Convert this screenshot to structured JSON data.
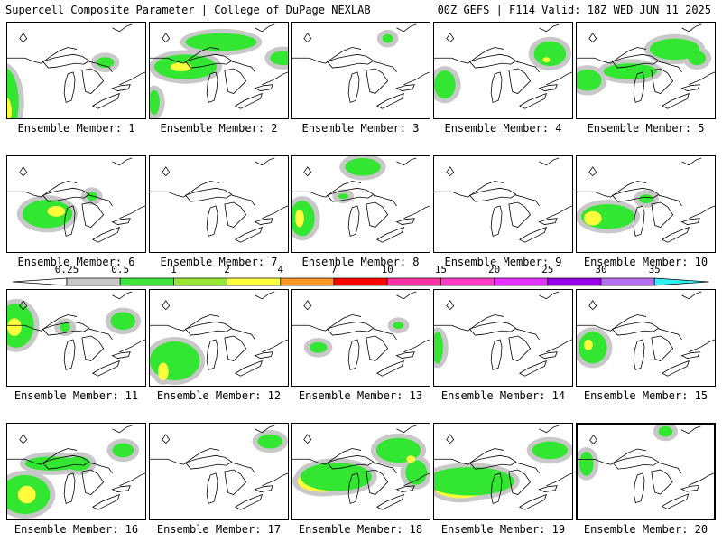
{
  "header": {
    "left": "Supercell Composite Parameter | College of DuPage NEXLAB",
    "right": "00Z GEFS | F114 Valid: 18Z WED JUN 11 2025"
  },
  "panels": [
    {
      "label": "Ensemble Member: 1",
      "blobs": [
        [
          "g",
          -5,
          90,
          18,
          40
        ],
        [
          "y",
          -2,
          100,
          7,
          16
        ],
        [
          "g",
          110,
          45,
          10,
          6
        ]
      ]
    },
    {
      "label": "Ensemble Member: 2",
      "blobs": [
        [
          "g",
          40,
          50,
          35,
          14
        ],
        [
          "y",
          35,
          50,
          12,
          5
        ],
        [
          "g",
          80,
          22,
          40,
          10
        ],
        [
          "g",
          150,
          40,
          15,
          8
        ],
        [
          "g",
          5,
          90,
          6,
          14
        ]
      ]
    },
    {
      "label": "Ensemble Member: 3",
      "blobs": [
        [
          "g",
          108,
          18,
          6,
          5
        ]
      ]
    },
    {
      "label": "Ensemble Member: 4",
      "blobs": [
        [
          "g",
          12,
          70,
          12,
          16
        ],
        [
          "g",
          130,
          35,
          18,
          14
        ],
        [
          "y",
          126,
          42,
          4,
          3
        ]
      ]
    },
    {
      "label": "Ensemble Member: 5",
      "blobs": [
        [
          "g",
          12,
          65,
          16,
          12
        ],
        [
          "g",
          60,
          55,
          30,
          9
        ],
        [
          "g",
          110,
          30,
          28,
          12
        ],
        [
          "g",
          135,
          40,
          10,
          8
        ]
      ]
    },
    {
      "label": "Ensemble Member: 6",
      "blobs": [
        [
          "g",
          45,
          65,
          28,
          16
        ],
        [
          "y",
          55,
          62,
          10,
          6
        ],
        [
          "g",
          95,
          45,
          6,
          5
        ]
      ]
    },
    {
      "label": "Ensemble Member: 7",
      "blobs": []
    },
    {
      "label": "Ensemble Member: 8",
      "blobs": [
        [
          "g",
          12,
          70,
          14,
          20
        ],
        [
          "y",
          9,
          70,
          5,
          10
        ],
        [
          "g",
          80,
          12,
          20,
          10
        ],
        [
          "g",
          58,
          45,
          6,
          3
        ]
      ]
    },
    {
      "label": "Ensemble Member: 9",
      "blobs": []
    },
    {
      "label": "Ensemble Member: 10",
      "blobs": [
        [
          "g",
          35,
          68,
          30,
          14
        ],
        [
          "y",
          18,
          70,
          10,
          8
        ],
        [
          "g",
          78,
          48,
          8,
          5
        ]
      ]
    },
    {
      "label": "Ensemble Member: 11",
      "blobs": [
        [
          "g",
          10,
          40,
          20,
          25
        ],
        [
          "y",
          8,
          42,
          8,
          10
        ],
        [
          "g",
          130,
          35,
          14,
          10
        ],
        [
          "g",
          65,
          42,
          6,
          5
        ]
      ]
    },
    {
      "label": "Ensemble Member: 12",
      "blobs": [
        [
          "g",
          28,
          80,
          28,
          22
        ],
        [
          "y",
          15,
          92,
          6,
          10
        ]
      ]
    },
    {
      "label": "Ensemble Member: 13",
      "blobs": [
        [
          "g",
          30,
          65,
          10,
          6
        ],
        [
          "g",
          120,
          40,
          6,
          4
        ]
      ]
    },
    {
      "label": "Ensemble Member: 14",
      "blobs": [
        [
          "g",
          4,
          65,
          6,
          18
        ]
      ]
    },
    {
      "label": "Ensemble Member: 15",
      "blobs": [
        [
          "g",
          18,
          65,
          16,
          18
        ],
        [
          "y",
          13,
          62,
          5,
          6
        ]
      ]
    },
    {
      "label": "Ensemble Member: 16",
      "blobs": [
        [
          "g",
          20,
          80,
          28,
          22
        ],
        [
          "y",
          22,
          80,
          10,
          10
        ],
        [
          "g",
          50,
          45,
          30,
          8
        ],
        [
          "g",
          130,
          30,
          12,
          8
        ],
        [
          "g",
          80,
          45,
          14,
          8
        ]
      ]
    },
    {
      "label": "Ensemble Member: 17",
      "blobs": [
        [
          "g",
          135,
          20,
          14,
          8
        ]
      ]
    },
    {
      "label": "Ensemble Member: 18",
      "blobs": [
        [
          "y",
          35,
          65,
          28,
          12
        ],
        [
          "g",
          50,
          60,
          40,
          16
        ],
        [
          "g",
          120,
          30,
          25,
          14
        ],
        [
          "g",
          140,
          55,
          12,
          14
        ],
        [
          "y",
          134,
          40,
          5,
          4
        ]
      ]
    },
    {
      "label": "Ensemble Member: 19",
      "blobs": [
        [
          "y",
          30,
          70,
          32,
          14
        ],
        [
          "g",
          40,
          65,
          50,
          16
        ],
        [
          "g",
          130,
          30,
          20,
          10
        ]
      ]
    },
    {
      "label": "Ensemble Member: 20",
      "blobs": [
        [
          "g",
          10,
          45,
          8,
          14
        ],
        [
          "g",
          100,
          8,
          8,
          6
        ]
      ]
    }
  ],
  "colorbar": {
    "labels": [
      "0.25",
      "0.5",
      "1",
      "2",
      "4",
      "7",
      "10",
      "15",
      "20",
      "25",
      "30",
      "35"
    ],
    "colors": [
      "#c8c8c8",
      "#3ce63c",
      "#96e632",
      "#ffff3c",
      "#ff9628",
      "#ff0000",
      "#ff32a0",
      "#ff3cc8",
      "#e632ff",
      "#9600e6",
      "#b46ef0",
      "#32f0f0"
    ]
  },
  "colors": {
    "shade_gray": "#c8c8c8",
    "shade_green": "#32e632",
    "shade_yellow": "#ffff3c"
  }
}
